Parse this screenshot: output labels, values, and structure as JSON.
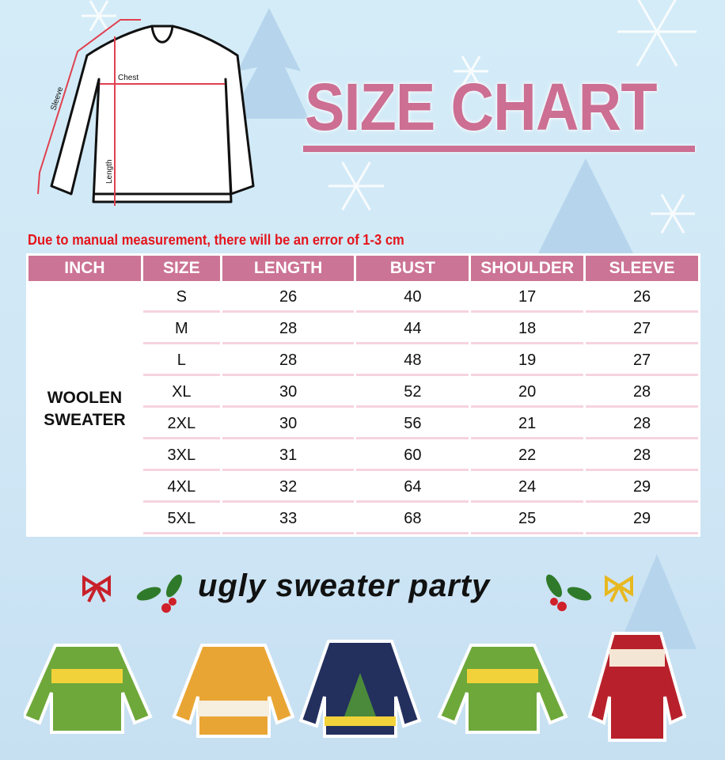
{
  "title": "SIZE CHART",
  "diagram": {
    "chest": "Chest",
    "length": "Length",
    "sleeve": "Sleeve"
  },
  "note": "Due to manual measurement, there will be an error of 1-3 cm",
  "table": {
    "headers": [
      "INCH",
      "SIZE",
      "LENGTH",
      "BUST",
      "SHOULDER",
      "SLEEVE"
    ],
    "category": "WOOLEN SWEATER",
    "rows": [
      [
        "S",
        "26",
        "40",
        "17",
        "26"
      ],
      [
        "M",
        "28",
        "44",
        "18",
        "27"
      ],
      [
        "L",
        "28",
        "48",
        "19",
        "27"
      ],
      [
        "XL",
        "30",
        "52",
        "20",
        "28"
      ],
      [
        "2XL",
        "30",
        "56",
        "21",
        "28"
      ],
      [
        "3XL",
        "31",
        "60",
        "22",
        "28"
      ],
      [
        "4XL",
        "32",
        "64",
        "24",
        "29"
      ],
      [
        "5XL",
        "33",
        "68",
        "25",
        "29"
      ]
    ]
  },
  "banner": "ugly sweater party",
  "colors": {
    "accent": "#cc6f92",
    "header": "#cc7495",
    "warning": "#e4151c",
    "background": "#d4ecf8"
  }
}
